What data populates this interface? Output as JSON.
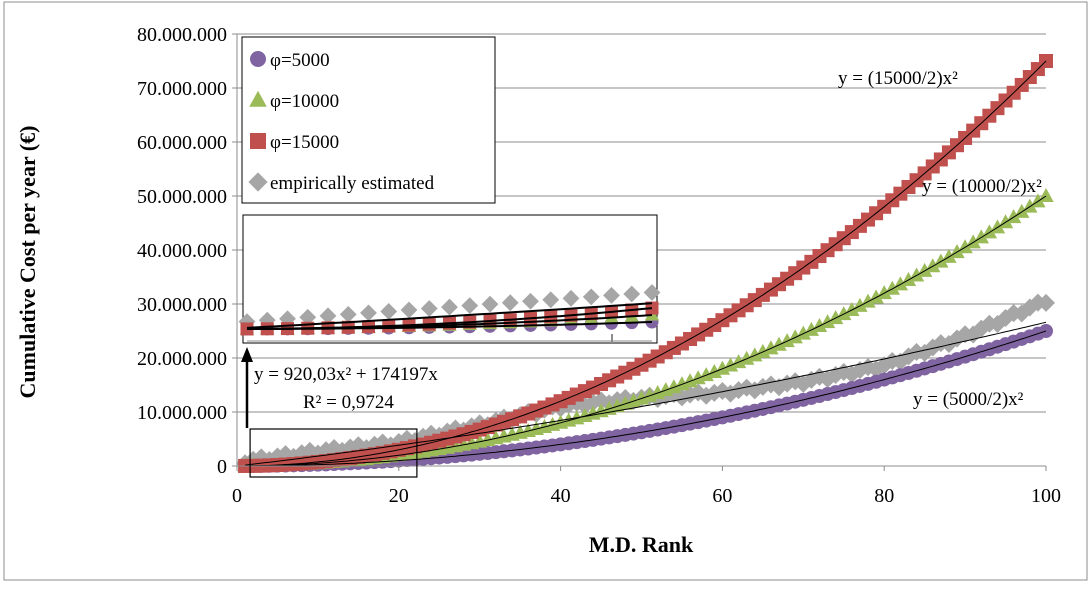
{
  "chart_data": {
    "type": "scatter",
    "xlabel": "M.D. Rank",
    "ylabel": "Cumulative Cost per year (€)",
    "xlim": [
      0,
      100
    ],
    "ylim": [
      0,
      80000000
    ],
    "x_ticks": [
      "0",
      "20",
      "40",
      "60",
      "80",
      "100"
    ],
    "y_ticks": [
      "0",
      "10.000.000",
      "20.000.000",
      "30.000.000",
      "40.000.000",
      "50.000.000",
      "60.000.000",
      "70.000.000",
      "80.000.000"
    ],
    "grid": "horizontal",
    "legend_position": "top-left",
    "series": [
      {
        "name": "φ=5000",
        "marker": "circle",
        "color": "#8064A2",
        "formula_coefficient": 2500,
        "x_range": [
          1,
          100
        ],
        "values_at": {
          "20": 1000000,
          "40": 4000000,
          "60": 9000000,
          "80": 16000000,
          "100": 25000000
        }
      },
      {
        "name": "φ=10000",
        "marker": "triangle",
        "color": "#9BBB59",
        "formula_coefficient": 5000,
        "x_range": [
          1,
          100
        ],
        "values_at": {
          "20": 2000000,
          "40": 8000000,
          "60": 18000000,
          "80": 32000000,
          "100": 50000000
        }
      },
      {
        "name": "φ=15000",
        "marker": "square",
        "color": "#C0504D",
        "formula_coefficient": 7500,
        "x_range": [
          1,
          100
        ],
        "values_at": {
          "20": 3000000,
          "40": 12000000,
          "60": 27000000,
          "80": 48000000,
          "100": 75000000
        }
      },
      {
        "name": "empirically estimated",
        "marker": "diamond",
        "color": "#A6A6A6",
        "x": [
          1,
          10,
          20,
          30,
          40,
          50,
          60,
          70,
          80,
          90,
          100
        ],
        "y": [
          800000,
          2600000,
          4300000,
          7500000,
          11000000,
          12500000,
          13500000,
          15500000,
          18500000,
          24000000,
          30500000
        ]
      }
    ],
    "annotations": [
      {
        "text": "y = (15000/2)x²"
      },
      {
        "text": "y = (10000/2)x²"
      },
      {
        "text": "y = (5000/2)x²"
      },
      {
        "text": "y = 920,03x² + 174197x"
      },
      {
        "text": "R² = 0,9724"
      }
    ],
    "fit": {
      "a": 920.03,
      "b": 174197
    },
    "inset": {
      "description_range_x": [
        1,
        21
      ]
    }
  }
}
